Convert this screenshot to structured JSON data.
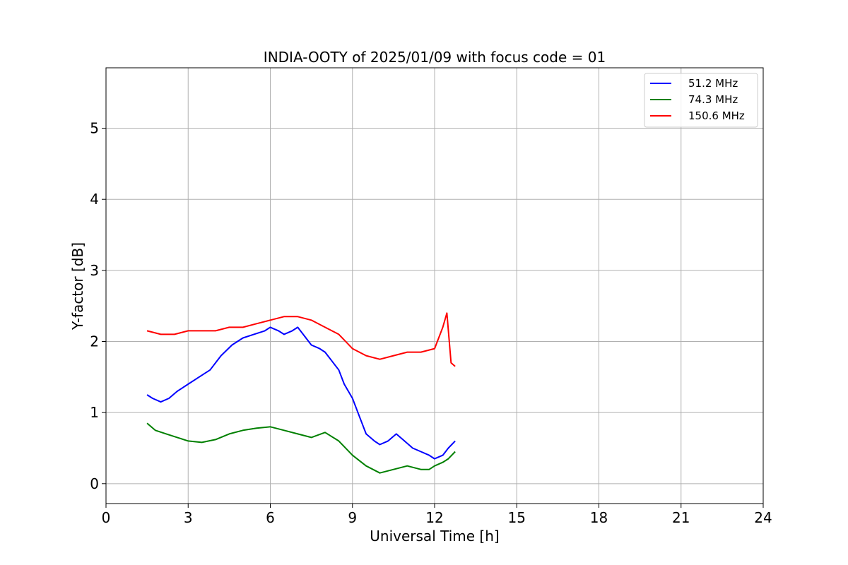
{
  "chart_data": {
    "type": "line",
    "title": "INDIA-OOTY of 2025/01/09 with focus code = 01",
    "xlabel": "Universal Time [h]",
    "ylabel": "Y-factor [dB]",
    "xlim": [
      0,
      24
    ],
    "ylim": [
      -0.28,
      5.85
    ],
    "xticks": [
      0,
      3,
      6,
      9,
      12,
      15,
      18,
      21,
      24
    ],
    "yticks": [
      0,
      1,
      2,
      3,
      4,
      5
    ],
    "grid": true,
    "legend_position": "top-right",
    "series": [
      {
        "name": "51.2 MHz",
        "color": "#0000ff",
        "x": [
          1.5,
          1.7,
          2.0,
          2.3,
          2.6,
          3.0,
          3.4,
          3.8,
          4.2,
          4.6,
          5.0,
          5.4,
          5.8,
          6.0,
          6.3,
          6.5,
          6.8,
          7.0,
          7.2,
          7.5,
          7.8,
          8.0,
          8.3,
          8.5,
          8.7,
          9.0,
          9.2,
          9.5,
          9.8,
          10.0,
          10.3,
          10.6,
          10.9,
          11.2,
          11.5,
          11.8,
          12.0,
          12.3,
          12.5,
          12.75
        ],
        "y": [
          1.25,
          1.2,
          1.15,
          1.2,
          1.3,
          1.4,
          1.5,
          1.6,
          1.8,
          1.95,
          2.05,
          2.1,
          2.15,
          2.2,
          2.15,
          2.1,
          2.15,
          2.2,
          2.1,
          1.95,
          1.9,
          1.85,
          1.7,
          1.6,
          1.4,
          1.2,
          1.0,
          0.7,
          0.6,
          0.55,
          0.6,
          0.7,
          0.6,
          0.5,
          0.45,
          0.4,
          0.35,
          0.4,
          0.5,
          0.6
        ]
      },
      {
        "name": "74.3 MHz",
        "color": "#008000",
        "x": [
          1.5,
          1.8,
          2.2,
          2.6,
          3.0,
          3.5,
          4.0,
          4.5,
          5.0,
          5.5,
          6.0,
          6.5,
          7.0,
          7.5,
          8.0,
          8.5,
          9.0,
          9.5,
          10.0,
          10.5,
          11.0,
          11.5,
          11.8,
          12.0,
          12.3,
          12.5,
          12.75
        ],
        "y": [
          0.85,
          0.75,
          0.7,
          0.65,
          0.6,
          0.58,
          0.62,
          0.7,
          0.75,
          0.78,
          0.8,
          0.75,
          0.7,
          0.65,
          0.72,
          0.6,
          0.4,
          0.25,
          0.15,
          0.2,
          0.25,
          0.2,
          0.2,
          0.25,
          0.3,
          0.35,
          0.45
        ]
      },
      {
        "name": "150.6 MHz",
        "color": "#ff0000",
        "x": [
          1.5,
          2.0,
          2.5,
          3.0,
          3.5,
          4.0,
          4.5,
          5.0,
          5.5,
          6.0,
          6.5,
          7.0,
          7.5,
          8.0,
          8.5,
          9.0,
          9.5,
          10.0,
          10.5,
          11.0,
          11.5,
          12.0,
          12.3,
          12.45,
          12.6,
          12.75
        ],
        "y": [
          2.15,
          2.1,
          2.1,
          2.15,
          2.15,
          2.15,
          2.2,
          2.2,
          2.25,
          2.3,
          2.35,
          2.35,
          2.3,
          2.2,
          2.1,
          1.9,
          1.8,
          1.75,
          1.8,
          1.85,
          1.85,
          1.9,
          2.2,
          2.4,
          1.7,
          1.65
        ]
      }
    ]
  }
}
